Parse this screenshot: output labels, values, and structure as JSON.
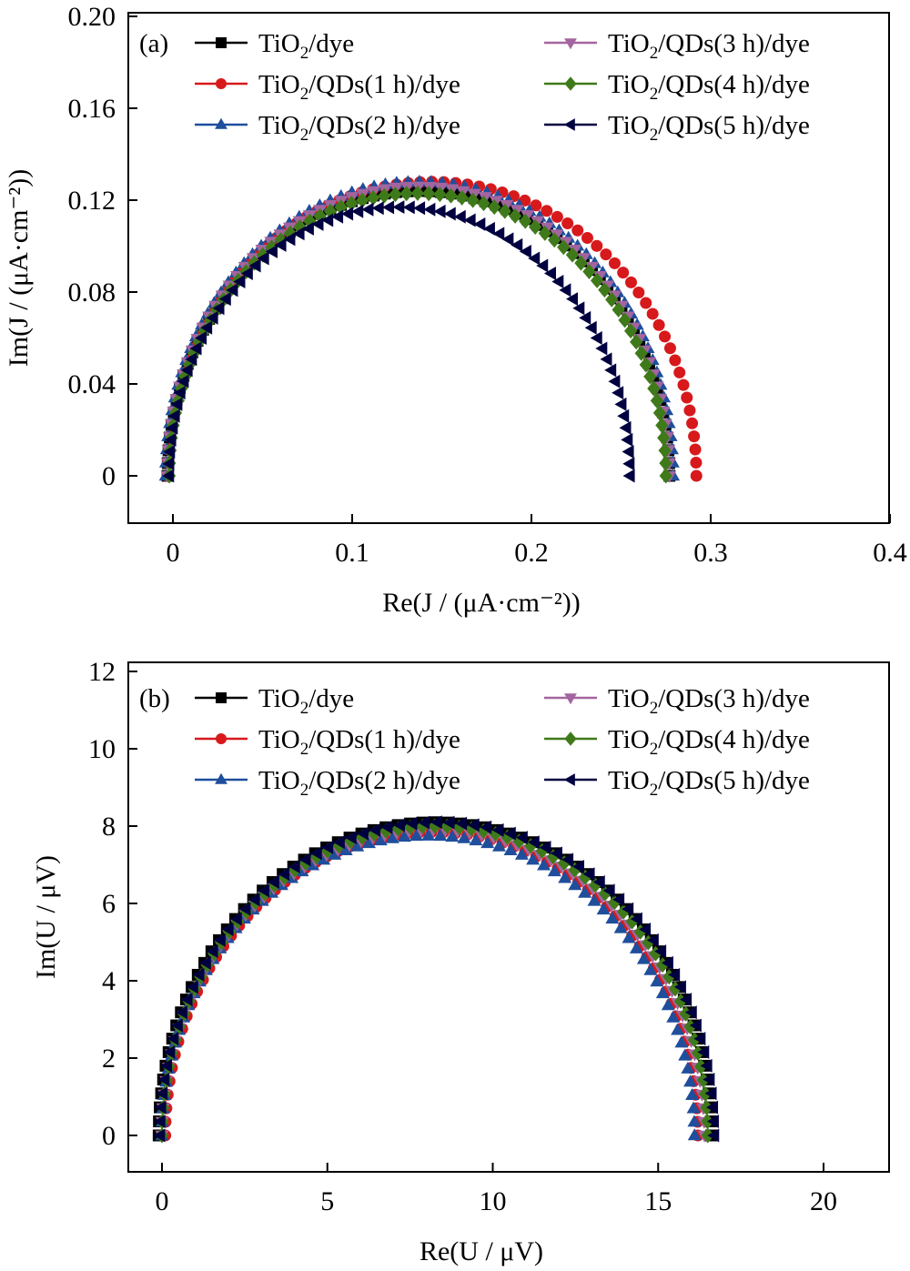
{
  "chart_data": [
    {
      "type": "scatter",
      "panel_label": "(a)",
      "title": "",
      "xlabel": "Re(J / (μA·cm⁻²))",
      "ylabel": "Im(J / (μA·cm⁻²))",
      "xlim": [
        -0.025,
        0.4
      ],
      "ylim": [
        -0.02,
        0.2
      ],
      "xticks": [
        0,
        0.1,
        0.2,
        0.3,
        0.4
      ],
      "xtick_labels": [
        "0",
        "0.1",
        "0.2",
        "0.3",
        "0.4"
      ],
      "yticks": [
        0,
        0.04,
        0.08,
        0.12,
        0.16,
        0.2
      ],
      "ytick_labels": [
        "0",
        "0.04",
        "0.08",
        "0.12",
        "0.16",
        "0.20"
      ],
      "grid": false,
      "legend_position": "top",
      "series": [
        {
          "name": "TiO2/dye",
          "label_main": "TiO",
          "label_sub": "2",
          "label_rest": "/dye",
          "color": "#000000",
          "marker": "square",
          "x_start": -0.003,
          "x_end": 0.277,
          "peak_im": 0.124
        },
        {
          "name": "TiO2/QDs(1 h)/dye",
          "label_main": "TiO",
          "label_sub": "2",
          "label_rest": "/QDs(1 h)/dye",
          "color": "#d7191c",
          "marker": "circle",
          "x_start": -0.003,
          "x_end": 0.292,
          "peak_im": 0.128
        },
        {
          "name": "TiO2/QDs(2 h)/dye",
          "label_main": "TiO",
          "label_sub": "2",
          "label_rest": "/QDs(2 h)/dye",
          "color": "#1f4e9c",
          "marker": "triangle-up",
          "x_start": -0.004,
          "x_end": 0.279,
          "peak_im": 0.128
        },
        {
          "name": "TiO2/QDs(3 h)/dye",
          "label_main": "TiO",
          "label_sub": "2",
          "label_rest": "/QDs(3 h)/dye",
          "color": "#a3659e",
          "marker": "triangle-down",
          "x_start": -0.003,
          "x_end": 0.277,
          "peak_im": 0.126
        },
        {
          "name": "TiO2/QDs(4 h)/dye",
          "label_main": "TiO",
          "label_sub": "2",
          "label_rest": "/QDs(4 h)/dye",
          "color": "#3f7a1a",
          "marker": "diamond",
          "x_start": -0.002,
          "x_end": 0.275,
          "peak_im": 0.123
        },
        {
          "name": "TiO2/QDs(5 h)/dye",
          "label_main": "TiO",
          "label_sub": "2",
          "label_rest": "/QDs(5 h)/dye",
          "color": "#000040",
          "marker": "triangle-left",
          "x_start": -0.002,
          "x_end": 0.255,
          "peak_im": 0.117
        }
      ]
    },
    {
      "type": "scatter",
      "panel_label": "(b)",
      "title": "",
      "xlabel": "Re(U / μV)",
      "ylabel": "Im(U / μV)",
      "xlim": [
        -1,
        22
      ],
      "ylim": [
        -1.2,
        12
      ],
      "xticks": [
        0,
        5,
        10,
        15,
        20
      ],
      "xtick_labels": [
        "0",
        "5",
        "10",
        "15",
        "20"
      ],
      "yticks": [
        0,
        2,
        4,
        6,
        8,
        10,
        12
      ],
      "ytick_labels": [
        "0",
        "2",
        "4",
        "6",
        "8",
        "10",
        "12"
      ],
      "grid": false,
      "legend_position": "top",
      "series": [
        {
          "name": "TiO2/dye",
          "label_main": "TiO",
          "label_sub": "2",
          "label_rest": "/dye",
          "color": "#000000",
          "marker": "square",
          "x_start": -0.1,
          "x_end": 16.6,
          "peak_im": 8.1
        },
        {
          "name": "TiO2/QDs(1 h)/dye",
          "label_main": "TiO",
          "label_sub": "2",
          "label_rest": "/QDs(1 h)/dye",
          "color": "#d7191c",
          "marker": "circle",
          "x_start": 0.1,
          "x_end": 16.2,
          "peak_im": 7.85
        },
        {
          "name": "TiO2/QDs(2 h)/dye",
          "label_main": "TiO",
          "label_sub": "2",
          "label_rest": "/QDs(2 h)/dye",
          "color": "#1f4e9c",
          "marker": "triangle-up",
          "x_start": 0.0,
          "x_end": 16.1,
          "peak_im": 7.75
        },
        {
          "name": "TiO2/QDs(3 h)/dye",
          "label_main": "TiO",
          "label_sub": "2",
          "label_rest": "/QDs(3 h)/dye",
          "color": "#a3659e",
          "marker": "triangle-down",
          "x_start": 0.0,
          "x_end": 16.4,
          "peak_im": 7.9
        },
        {
          "name": "TiO2/QDs(4 h)/dye",
          "label_main": "TiO",
          "label_sub": "2",
          "label_rest": "/QDs(4 h)/dye",
          "color": "#3f7a1a",
          "marker": "diamond",
          "x_start": 0.0,
          "x_end": 16.5,
          "peak_im": 8.0
        },
        {
          "name": "TiO2/QDs(5 h)/dye",
          "label_main": "TiO",
          "label_sub": "2",
          "label_rest": "/QDs(5 h)/dye",
          "color": "#000040",
          "marker": "triangle-left",
          "x_start": -0.05,
          "x_end": 16.7,
          "peak_im": 8.1
        }
      ]
    }
  ]
}
